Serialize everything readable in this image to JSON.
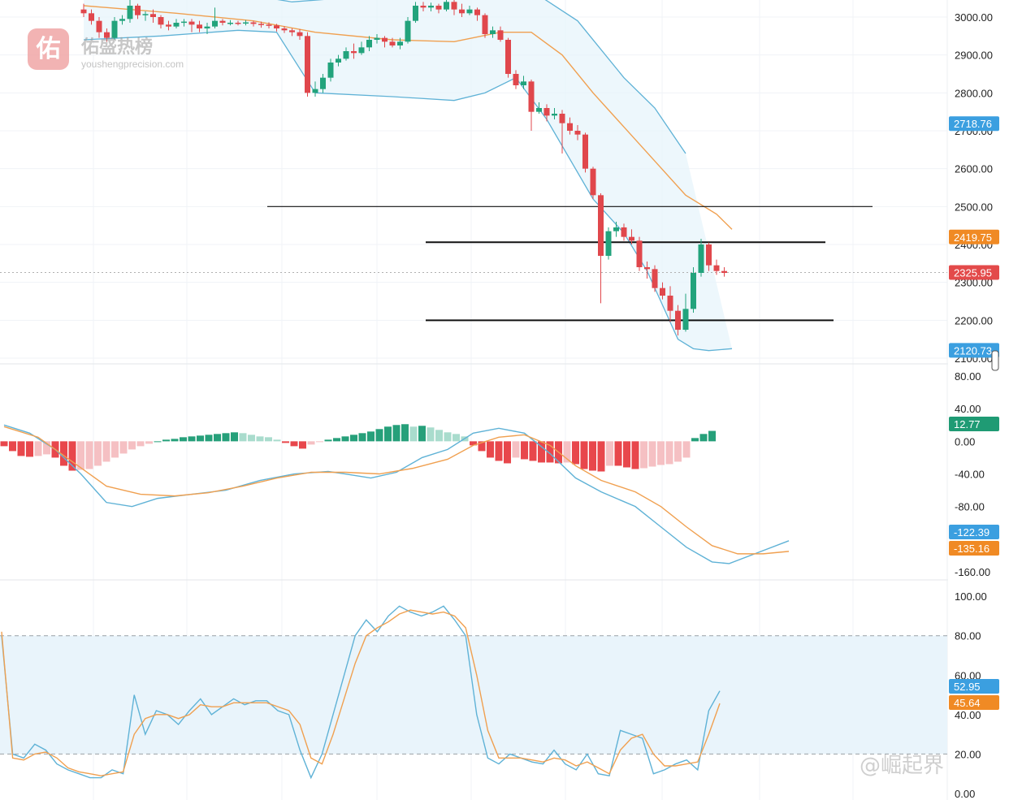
{
  "watermarks": {
    "top_logo_char": "佑",
    "top_title": "佑盛热榜",
    "top_url": "youshengprecision.com",
    "bottom_text": "@崛起界"
  },
  "chart_data": [
    {
      "type": "candlestick",
      "panel": "price",
      "ylim": [
        2085,
        3045
      ],
      "y_ticks": [
        "3000.00",
        "2900.00",
        "2800.00",
        "2700.00",
        "2600.00",
        "2500.00",
        "2400.00",
        "2300.00",
        "2200.00",
        "2100.00"
      ],
      "price_badges": [
        {
          "label": "2718.76",
          "value": 2718.76,
          "color": "#3b9fe0"
        },
        {
          "label": "2419.75",
          "value": 2419.75,
          "color": "#f08a24"
        },
        {
          "label": "2325.95",
          "value": 2325.95,
          "color": "#e34a4a"
        },
        {
          "label": "2120.73",
          "value": 2120.73,
          "color": "#3b9fe0"
        }
      ],
      "horizontal_levels": [
        2500,
        2406,
        2200
      ],
      "candles": [
        [
          3020,
          3010,
          3035,
          3000
        ],
        [
          3010,
          2990,
          3020,
          2980
        ],
        [
          2990,
          2960,
          3000,
          2945
        ],
        [
          2960,
          2945,
          2970,
          2935
        ],
        [
          2945,
          2990,
          3000,
          2940
        ],
        [
          2990,
          2995,
          3005,
          2980
        ],
        [
          2995,
          3030,
          3045,
          2985
        ],
        [
          3030,
          3005,
          3035,
          2995
        ],
        [
          3005,
          3008,
          3015,
          2990
        ],
        [
          3008,
          3000,
          3020,
          2985
        ],
        [
          3000,
          2980,
          3005,
          2970
        ],
        [
          2980,
          2975,
          2990,
          2965
        ],
        [
          2975,
          2985,
          2995,
          2970
        ],
        [
          2985,
          2988,
          2995,
          2975
        ],
        [
          2988,
          2980,
          2995,
          2960
        ],
        [
          2980,
          2970,
          2990,
          2960
        ],
        [
          2970,
          2975,
          2985,
          2955
        ],
        [
          2975,
          2990,
          3025,
          2970
        ],
        [
          2990,
          2985,
          2995,
          2978
        ],
        [
          2985,
          2985,
          2992,
          2978
        ],
        [
          2985,
          2983,
          2990,
          2978
        ],
        [
          2983,
          2986,
          2992,
          2978
        ],
        [
          2986,
          2982,
          2990,
          2975
        ],
        [
          2982,
          2980,
          2988,
          2972
        ],
        [
          2980,
          2978,
          2986,
          2970
        ],
        [
          2978,
          2970,
          2982,
          2962
        ],
        [
          2970,
          2965,
          2976,
          2958
        ],
        [
          2965,
          2960,
          2970,
          2950
        ],
        [
          2960,
          2950,
          2968,
          2940
        ],
        [
          2950,
          2800,
          2960,
          2790
        ],
        [
          2800,
          2810,
          2830,
          2790
        ],
        [
          2810,
          2840,
          2850,
          2800
        ],
        [
          2840,
          2880,
          2890,
          2830
        ],
        [
          2880,
          2890,
          2900,
          2870
        ],
        [
          2890,
          2910,
          2920,
          2885
        ],
        [
          2910,
          2905,
          2930,
          2890
        ],
        [
          2905,
          2920,
          2935,
          2900
        ],
        [
          2920,
          2940,
          2950,
          2910
        ],
        [
          2940,
          2945,
          2955,
          2930
        ],
        [
          2945,
          2935,
          2950,
          2920
        ],
        [
          2935,
          2925,
          2945,
          2920
        ],
        [
          2925,
          2935,
          2945,
          2915
        ],
        [
          2935,
          2990,
          3000,
          2930
        ],
        [
          2990,
          3030,
          3040,
          2985
        ],
        [
          3030,
          3025,
          3040,
          3015
        ],
        [
          3025,
          3030,
          3038,
          3015
        ],
        [
          3030,
          3020,
          3035,
          3010
        ],
        [
          3020,
          3040,
          3050,
          3015
        ],
        [
          3040,
          3020,
          3045,
          3005
        ],
        [
          3020,
          3010,
          3035,
          3000
        ],
        [
          3010,
          3020,
          3030,
          3005
        ],
        [
          3020,
          3005,
          3025,
          2990
        ],
        [
          3005,
          2955,
          3010,
          2945
        ],
        [
          2955,
          2965,
          2975,
          2945
        ],
        [
          2965,
          2940,
          2975,
          2935
        ],
        [
          2940,
          2850,
          2945,
          2840
        ],
        [
          2850,
          2820,
          2860,
          2810
        ],
        [
          2820,
          2830,
          2845,
          2810
        ],
        [
          2830,
          2750,
          2835,
          2700
        ],
        [
          2750,
          2760,
          2775,
          2745
        ],
        [
          2760,
          2740,
          2770,
          2725
        ],
        [
          2740,
          2745,
          2760,
          2730
        ],
        [
          2745,
          2720,
          2755,
          2640
        ],
        [
          2720,
          2700,
          2735,
          2690
        ],
        [
          2700,
          2690,
          2715,
          2675
        ],
        [
          2690,
          2600,
          2695,
          2590
        ],
        [
          2600,
          2530,
          2605,
          2520
        ],
        [
          2530,
          2370,
          2535,
          2245
        ],
        [
          2370,
          2435,
          2445,
          2360
        ],
        [
          2435,
          2445,
          2460,
          2420
        ],
        [
          2445,
          2420,
          2455,
          2410
        ],
        [
          2420,
          2410,
          2440,
          2400
        ],
        [
          2410,
          2340,
          2420,
          2330
        ],
        [
          2340,
          2335,
          2355,
          2310
        ],
        [
          2335,
          2285,
          2345,
          2275
        ],
        [
          2285,
          2265,
          2300,
          2255
        ],
        [
          2265,
          2225,
          2290,
          2195
        ],
        [
          2225,
          2175,
          2240,
          2160
        ],
        [
          2175,
          2230,
          2270,
          2170
        ],
        [
          2230,
          2325,
          2340,
          2220
        ],
        [
          2325,
          2400,
          2415,
          2315
        ],
        [
          2400,
          2345,
          2405,
          2330
        ],
        [
          2345,
          2330,
          2360,
          2320
        ],
        [
          2330,
          2325,
          2340,
          2315
        ]
      ],
      "overlays": {
        "upper_band": [
          [
            0,
            3060
          ],
          [
            15,
            3080
          ],
          [
            27,
            3040
          ],
          [
            40,
            3060
          ],
          [
            52,
            3070
          ],
          [
            58,
            3070
          ],
          [
            64,
            2990
          ],
          [
            70,
            2840
          ],
          [
            74,
            2760
          ],
          [
            76,
            2700
          ],
          [
            78,
            2640
          ]
        ],
        "middle_line": [
          [
            0,
            3030
          ],
          [
            12,
            3010
          ],
          [
            22,
            2990
          ],
          [
            30,
            2960
          ],
          [
            40,
            2940
          ],
          [
            48,
            2935
          ],
          [
            54,
            2960
          ],
          [
            58,
            2960
          ],
          [
            62,
            2900
          ],
          [
            66,
            2800
          ],
          [
            70,
            2710
          ],
          [
            74,
            2620
          ],
          [
            78,
            2530
          ],
          [
            82,
            2480
          ],
          [
            84,
            2440
          ]
        ],
        "lower_band": [
          [
            0,
            2940
          ],
          [
            10,
            2950
          ],
          [
            20,
            2965
          ],
          [
            25,
            2960
          ],
          [
            30,
            2800
          ],
          [
            40,
            2790
          ],
          [
            48,
            2780
          ],
          [
            52,
            2800
          ],
          [
            56,
            2840
          ],
          [
            60,
            2730
          ],
          [
            66,
            2520
          ],
          [
            70,
            2430
          ],
          [
            73,
            2330
          ],
          [
            75,
            2240
          ],
          [
            77,
            2150
          ],
          [
            79,
            2125
          ],
          [
            81,
            2120
          ],
          [
            84,
            2125
          ]
        ]
      }
    },
    {
      "type": "macd",
      "panel": "macd",
      "ylim": [
        -170,
        95
      ],
      "y_ticks": [
        "80.00",
        "40.00",
        "0.00",
        "-40.00",
        "-80.00",
        "-160.00"
      ],
      "badges": [
        {
          "label": "12.77",
          "value": 12.77,
          "color": "#1f9b74"
        },
        {
          "label": "-122.39",
          "value": -122.39,
          "color": "#3b9fe0"
        },
        {
          "label": "-135.16",
          "value": -135.16,
          "color": "#f08a24"
        }
      ],
      "histogram": [
        -6,
        -12,
        -18,
        -19,
        -18,
        -16,
        -20,
        -30,
        -36,
        -35,
        -34,
        -30,
        -25,
        -20,
        -15,
        -10,
        -6,
        -3,
        0,
        2,
        3,
        5,
        6,
        7,
        8,
        9,
        10,
        11,
        10,
        8,
        6,
        5,
        2,
        -2,
        -6,
        -9,
        -4,
        -1,
        2,
        4,
        6,
        8,
        10,
        12,
        15,
        18,
        20,
        21,
        18,
        19,
        17,
        14,
        11,
        9,
        6,
        -5,
        -12,
        -20,
        -24,
        -27,
        -20,
        -22,
        -24,
        -26,
        -26,
        -27,
        -26,
        -28,
        -34,
        -36,
        -37,
        -30,
        -30,
        -32,
        -34,
        -33,
        -31,
        -29,
        -28,
        -25,
        -20,
        4,
        9,
        12.77
      ],
      "macd_line": [
        [
          0,
          20
        ],
        [
          3,
          10
        ],
        [
          6,
          -10
        ],
        [
          9,
          -40
        ],
        [
          12,
          -75
        ],
        [
          15,
          -80
        ],
        [
          18,
          -70
        ],
        [
          22,
          -65
        ],
        [
          26,
          -60
        ],
        [
          30,
          -48
        ],
        [
          34,
          -40
        ],
        [
          38,
          -37
        ],
        [
          40,
          -40
        ],
        [
          43,
          -45
        ],
        [
          46,
          -38
        ],
        [
          49,
          -20
        ],
        [
          52,
          -10
        ],
        [
          55,
          10
        ],
        [
          58,
          16
        ],
        [
          61,
          10
        ],
        [
          64,
          -15
        ],
        [
          67,
          -45
        ],
        [
          70,
          -62
        ],
        [
          74,
          -80
        ],
        [
          77,
          -105
        ],
        [
          80,
          -130
        ],
        [
          83,
          -148
        ],
        [
          85,
          -150
        ],
        [
          88,
          -138
        ],
        [
          92,
          -122
        ]
      ],
      "signal_line": [
        [
          0,
          18
        ],
        [
          4,
          5
        ],
        [
          8,
          -25
        ],
        [
          12,
          -55
        ],
        [
          16,
          -65
        ],
        [
          20,
          -67
        ],
        [
          24,
          -63
        ],
        [
          28,
          -55
        ],
        [
          32,
          -45
        ],
        [
          36,
          -38
        ],
        [
          40,
          -38
        ],
        [
          44,
          -40
        ],
        [
          48,
          -33
        ],
        [
          52,
          -22
        ],
        [
          55,
          -5
        ],
        [
          58,
          5
        ],
        [
          61,
          8
        ],
        [
          64,
          -5
        ],
        [
          67,
          -30
        ],
        [
          70,
          -48
        ],
        [
          74,
          -62
        ],
        [
          77,
          -80
        ],
        [
          80,
          -105
        ],
        [
          83,
          -128
        ],
        [
          86,
          -138
        ],
        [
          89,
          -138
        ],
        [
          92,
          -135
        ]
      ]
    },
    {
      "type": "stochastic",
      "panel": "stochastic",
      "ylim": [
        0,
        105
      ],
      "y_ticks": [
        "100.00",
        "80.00",
        "60.00",
        "40.00",
        "20.00",
        "0.00"
      ],
      "band": [
        20,
        80
      ],
      "badges": [
        {
          "label": "52.95",
          "value": 52.95,
          "color": "#3b9fe0"
        },
        {
          "label": "45.64",
          "value": 45.64,
          "color": "#f08a24"
        }
      ],
      "k_line": [
        80,
        20,
        18,
        25,
        22,
        15,
        12,
        10,
        8,
        8,
        12,
        10,
        50,
        30,
        42,
        40,
        35,
        42,
        48,
        40,
        44,
        48,
        45,
        47,
        47,
        42,
        40,
        22,
        8,
        20,
        40,
        60,
        80,
        88,
        82,
        90,
        95,
        92,
        90,
        92,
        95,
        88,
        80,
        40,
        18,
        15,
        20,
        18,
        16,
        15,
        22,
        15,
        12,
        20,
        10,
        9,
        32,
        30,
        28,
        10,
        12,
        15,
        17,
        12,
        42,
        52
      ],
      "d_line": [
        82,
        18,
        17,
        20,
        21,
        18,
        13,
        11,
        10,
        9,
        10,
        11,
        30,
        38,
        40,
        40,
        38,
        40,
        45,
        44,
        44,
        46,
        46,
        46,
        46,
        44,
        42,
        35,
        18,
        15,
        30,
        48,
        66,
        80,
        84,
        87,
        91,
        93,
        92,
        91,
        92,
        90,
        84,
        60,
        32,
        18,
        18,
        18,
        17,
        16,
        18,
        17,
        14,
        16,
        13,
        10,
        22,
        28,
        30,
        20,
        14,
        14,
        15,
        16,
        30,
        45.64
      ]
    }
  ]
}
